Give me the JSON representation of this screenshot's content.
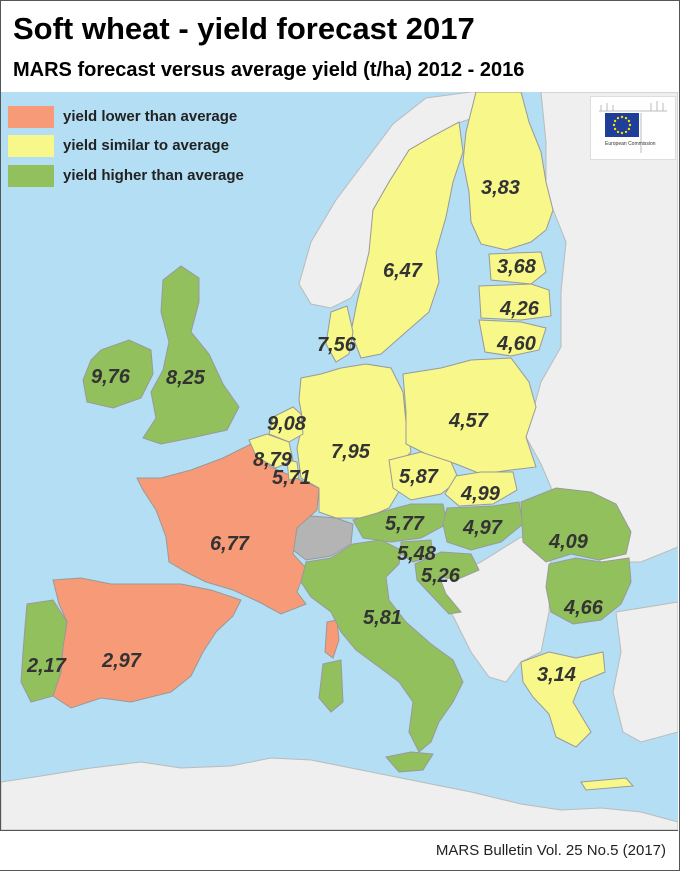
{
  "title": "Soft wheat - yield forecast 2017",
  "subtitle": "MARS forecast versus average yield (t/ha) 2012 - 2016",
  "legend": [
    {
      "label": "yield lower than average",
      "color": "#f79a78"
    },
    {
      "label": "yield similar to average",
      "color": "#f7f78a"
    },
    {
      "label": "yield higher than average",
      "color": "#92c05c"
    }
  ],
  "colors": {
    "lower": "#f79a78",
    "similar": "#f7f78a",
    "higher": "#92c05c",
    "non_eu": "#efefef",
    "no_data": "#b4b4b4",
    "sea": "#b3def3"
  },
  "logo": {
    "icon": "eu-flag-icon",
    "text": "European Commission"
  },
  "values": {
    "finland": "3,83",
    "sweden": "6,47",
    "estonia": "3,68",
    "latvia": "4,26",
    "lithuania": "4,60",
    "denmark": "7,56",
    "ireland": "9,76",
    "uk": "8,25",
    "netherlands": "9,08",
    "belgium": "8,79",
    "luxembourg": "5,71",
    "germany": "7,95",
    "poland": "4,57",
    "czechia": "5,87",
    "slovakia": "4,99",
    "hungary": "4,97",
    "austria": "5,77",
    "slovenia": "5,48",
    "croatia": "5,26",
    "romania": "4,09",
    "bulgaria": "4,66",
    "france": "6,77",
    "italy": "5,81",
    "portugal": "2,17",
    "spain": "2,97",
    "greece": "3,14"
  },
  "footer": "MARS Bulletin Vol. 25 No.5 (2017)"
}
